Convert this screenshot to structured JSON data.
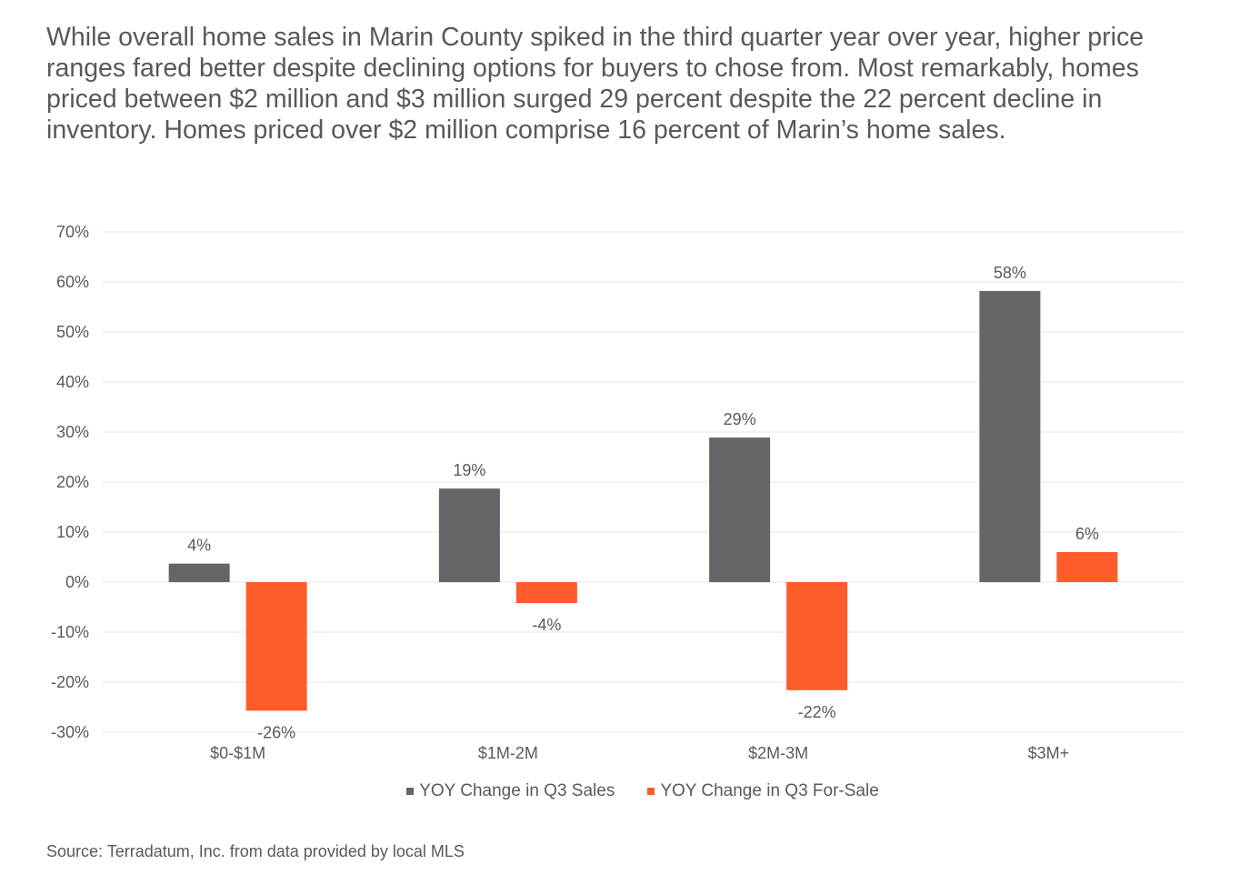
{
  "intro_text": "While overall home sales in Marin County spiked in the third quarter year over year, higher price ranges fared better despite declining options for buyers to chose from. Most remarkably, homes priced between $2 million and $3 million surged 29 percent despite the 22 percent decline in inventory. Homes priced over $2 million comprise 16 percent of Marin’s home sales.",
  "source": "Source: Terradatum, Inc. from data provided by local MLS",
  "colors": {
    "series_sales": "#636569",
    "series_forsale": "#ff5b2b",
    "gridline": "#e4e4e4",
    "text": "#58595b"
  },
  "chart_data": {
    "type": "bar",
    "categories": [
      "$0-$1M",
      "$1M-2M",
      "$2M-3M",
      "$3M+"
    ],
    "series": [
      {
        "name": "YOY Change in Q3 Sales",
        "values": [
          3.7,
          18.7,
          28.9,
          58.2
        ],
        "labels": [
          "4%",
          "19%",
          "29%",
          "58%"
        ],
        "color": "#636569"
      },
      {
        "name": "YOY Change in Q3 For-Sale",
        "values": [
          -25.7,
          -4.2,
          -21.6,
          6.0
        ],
        "labels": [
          "-26%",
          "-4%",
          "-22%",
          "6%"
        ],
        "color": "#ff5b2b"
      }
    ],
    "ylim": [
      -30,
      70
    ],
    "yticks": [
      70,
      60,
      50,
      40,
      30,
      20,
      10,
      0,
      -10,
      -20,
      -30
    ],
    "ytick_labels": [
      "70%",
      "60%",
      "50%",
      "40%",
      "30%",
      "20%",
      "10%",
      "0%",
      "-10%",
      "-20%",
      "-30%"
    ],
    "grid": true,
    "legend_position": "bottom",
    "title": "",
    "xlabel": "",
    "ylabel": ""
  }
}
